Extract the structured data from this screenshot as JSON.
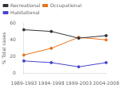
{
  "chart_data": {
    "type": "line",
    "categories": [
      "1989-1993",
      "1994-1998",
      "1999-2003",
      "2004-2008"
    ],
    "series": [
      {
        "name": "Recreational",
        "color": "#333333",
        "values": [
          52,
          50,
          42,
          45
        ]
      },
      {
        "name": "Occupational",
        "color": "#e8711a",
        "values": [
          22,
          30,
          43,
          40
        ]
      },
      {
        "name": "Habitational",
        "color": "#4444cc",
        "values": [
          15,
          13,
          8,
          13
        ]
      }
    ],
    "ylabel": "% Total cases",
    "ylim": [
      0,
      60
    ],
    "yticks": [
      0,
      20,
      40,
      60
    ],
    "grid": false,
    "legend": "upper left",
    "marker": "circle"
  }
}
